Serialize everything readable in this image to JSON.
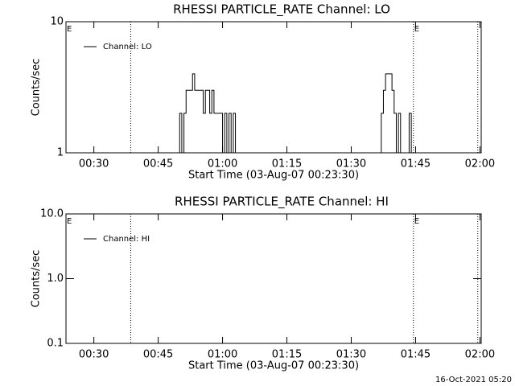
{
  "chart_data": [
    {
      "type": "line",
      "title": "RHESSI PARTICLE_RATE Channel: LO",
      "xlabel": "Start Time (03-Aug-07 00:23:30)",
      "ylabel": "Counts/sec",
      "log_y": true,
      "step": true,
      "legend": "upper left",
      "xlim": [
        23.5,
        120.3
      ],
      "ylim": [
        1,
        10
      ],
      "xticks": [
        {
          "value": 30,
          "label": "00:30"
        },
        {
          "value": 45,
          "label": "00:45"
        },
        {
          "value": 60,
          "label": "01:00"
        },
        {
          "value": 75,
          "label": "01:15"
        },
        {
          "value": 90,
          "label": "01:30"
        },
        {
          "value": 105,
          "label": "01:45"
        },
        {
          "value": 120,
          "label": "02:00"
        }
      ],
      "yticks": [
        1,
        10
      ],
      "vlines": [
        38.6,
        104.5,
        119.5
      ],
      "annotations": [
        {
          "text": "E",
          "x": 23.5
        },
        {
          "text": "E",
          "x": 104.5
        }
      ],
      "x": [
        49.5,
        50,
        50.5,
        51,
        51.5,
        52,
        52.5,
        53,
        53.5,
        54,
        54.5,
        55,
        55.5,
        56,
        56.5,
        57,
        57.5,
        58,
        58.5,
        59,
        59.5,
        60,
        60.5,
        61,
        61.5,
        62,
        62.5,
        63,
        96.5,
        97,
        97.5,
        98,
        98.5,
        99,
        99.5,
        100,
        100.5,
        101,
        101.5,
        102,
        102.5,
        103,
        103.5,
        104
      ],
      "series": [
        {
          "name": "Channel: LO",
          "color": "#000000",
          "values": [
            1,
            2,
            1,
            2,
            3,
            3,
            3,
            4,
            3,
            3,
            3,
            3,
            2,
            3,
            3,
            2,
            3,
            2,
            2,
            2,
            2,
            1,
            2,
            1,
            2,
            1,
            2,
            1,
            1,
            2,
            3,
            4,
            4,
            4,
            3,
            2,
            1,
            2,
            1,
            1,
            1,
            1,
            2,
            1
          ]
        }
      ]
    },
    {
      "type": "line",
      "title": "RHESSI PARTICLE_RATE Channel: HI",
      "xlabel": "Start Time (03-Aug-07 00:23:30)",
      "ylabel": "Counts/sec",
      "log_y": true,
      "step": true,
      "legend": "upper left",
      "xlim": [
        23.5,
        120.3
      ],
      "ylim": [
        0.1,
        10
      ],
      "xticks": [
        {
          "value": 30,
          "label": "00:30"
        },
        {
          "value": 45,
          "label": "00:45"
        },
        {
          "value": 60,
          "label": "01:00"
        },
        {
          "value": 75,
          "label": "01:15"
        },
        {
          "value": 90,
          "label": "01:30"
        },
        {
          "value": 105,
          "label": "01:45"
        },
        {
          "value": 120,
          "label": "02:00"
        }
      ],
      "yticks": [
        0.1,
        {
          "value": 1,
          "label": "1.0"
        },
        {
          "value": 10,
          "label": "10.0"
        }
      ],
      "vlines": [
        38.6,
        104.5,
        119.5
      ],
      "annotations": [
        {
          "text": "E",
          "x": 23.5
        },
        {
          "text": "E",
          "x": 104.5
        }
      ],
      "x": [],
      "series": [
        {
          "name": "Channel: HI",
          "color": "#000000",
          "values": []
        }
      ]
    }
  ],
  "footer": "16-Oct-2021 05:20"
}
